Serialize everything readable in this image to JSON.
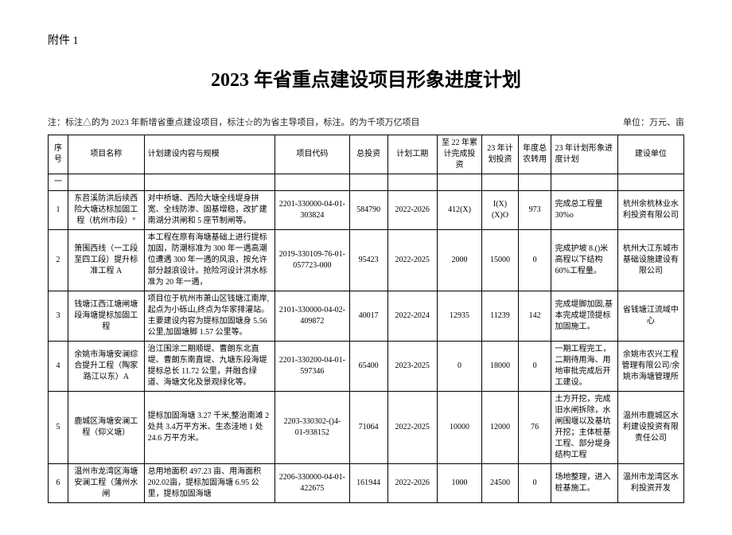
{
  "attachment_label": "附件 1",
  "title": "2023 年省重点建设项目形象进度计划",
  "note_left": "注：标注△的为 2023 年新增省重点建设项目，标注☆的为省主导项目，标注。的为千项万亿项目",
  "note_right": "单位：万元、亩",
  "headers": {
    "seq": "序号",
    "name": "项目名称",
    "content": "计划建设内容与规模",
    "code": "项目代码",
    "total_invest": "总投资",
    "period": "计划工期",
    "cum_invest": "至 22 年累计完成投资",
    "plan23": "23 年计划投资",
    "annual": "年度总农转用",
    "progress": "23 年计划形象进度计划",
    "unit": "建设单位"
  },
  "sep_row": "一",
  "rows": [
    {
      "seq": "1",
      "name": "东苕溪防洪后续西险大塘达标加固工程（杭州市段）°",
      "content": "对中桥塘、西险大塘全线堤身拼宽、全线防渗、固基增稳，改扩建南湖分洪闸和 5 座节制闸等。",
      "code": "2201-330000-04-01-303824",
      "total_invest": "584790",
      "period": "2022-2026",
      "cum_invest": "412(X)",
      "plan23": "I(X)(X)O",
      "annual": "973",
      "progress": "完成总工程量30%o",
      "unit": "杭州余杭林业水利投资有限公司"
    },
    {
      "seq": "2",
      "name": "箫围西线（一工段至四工段）提升标准工程 A",
      "content": "本工程在原有海塘基础上进行提标加固，防潮标准为 300 年一遇高潮位遭遇 300 年一遇的风浪，按允许部分越浪设计。抢险河设计洪水标准为 20 年一遇，",
      "code": "2019-330109-76-01-057723-000",
      "total_invest": "95423",
      "period": "2022-2025",
      "cum_invest": "2000",
      "plan23": "15000",
      "annual": "0",
      "progress": "完成护坡 8.()米高程以下结构60%工程量。",
      "unit": "杭州大江东城市基础设施建设有限公司"
    },
    {
      "seq": "3",
      "name": "钱塘江西江塘闸塘段海塘提标加固工程",
      "content": "项目位于杭州市萧山区钱塘江南岸,起点为小砾山,终点为华家排灌站。主要建设内容为提标加固塘身 5.56 公里,加固塘脚 1.57 公里等。",
      "code": "2101-330000-04-02-409872",
      "total_invest": "40017",
      "period": "2022-2024",
      "cum_invest": "12935",
      "plan23": "11239",
      "annual": "142",
      "progress": "完成堤脚加固,基本完成堤顶提标加固施工。",
      "unit": "省钱塘江流域中心"
    },
    {
      "seq": "4",
      "name": "余姚市海塘安澜综合提升工程（陶家路江以东）A",
      "content": "治江围涂二期顺堤、曹朗东北直堤、曹朗东南直堤、九塘东段海堤提标总长 11.72 公里，并融合绿道、海塘文化及景观绿化等。",
      "code": "2201-330200-04-01-597346",
      "total_invest": "65400",
      "period": "2023-2025",
      "cum_invest": "0",
      "plan23": "18000",
      "annual": "0",
      "progress": "一期工程完工，二期待用海、用地审批完成后开工建设。",
      "unit": "余姚市农兴工程管理有限公司/余姚市海塘管理所"
    },
    {
      "seq": "5",
      "name": "鹿城区海塘安澜工程（仰义塘）",
      "content": "提标加固海塘 3.27 千米,整治南滩 2 处共 3.4万平方米、生态洼地 1 处 24.6 万平方米。",
      "code": "2203-330302-()4-01-938152",
      "total_invest": "71064",
      "period": "2022-2025",
      "cum_invest": "10000",
      "plan23": "12000",
      "annual": "76",
      "progress": "土方开挖，完成旧水闸拆除，水闸围堰以及基坑开挖；主体桩基工程、部分堤身结构工程",
      "unit": "温州市鹿城区水利建设投资有限责任公司"
    },
    {
      "seq": "6",
      "name": "温州市龙湾区海塘安澜工程（蒲州水闸",
      "content": "总用地面积 497.23 亩、用海面积 202.02亩，提标加固海塘 6.95 公里，提标加固海塘",
      "code": "2206-330000-04-01-422675",
      "total_invest": "161944",
      "period": "2022-2026",
      "cum_invest": "1000",
      "plan23": "24500",
      "annual": "0",
      "progress": "场地整理，进入桩基施工。",
      "unit": "温州市龙湾区水利投资开发"
    }
  ]
}
